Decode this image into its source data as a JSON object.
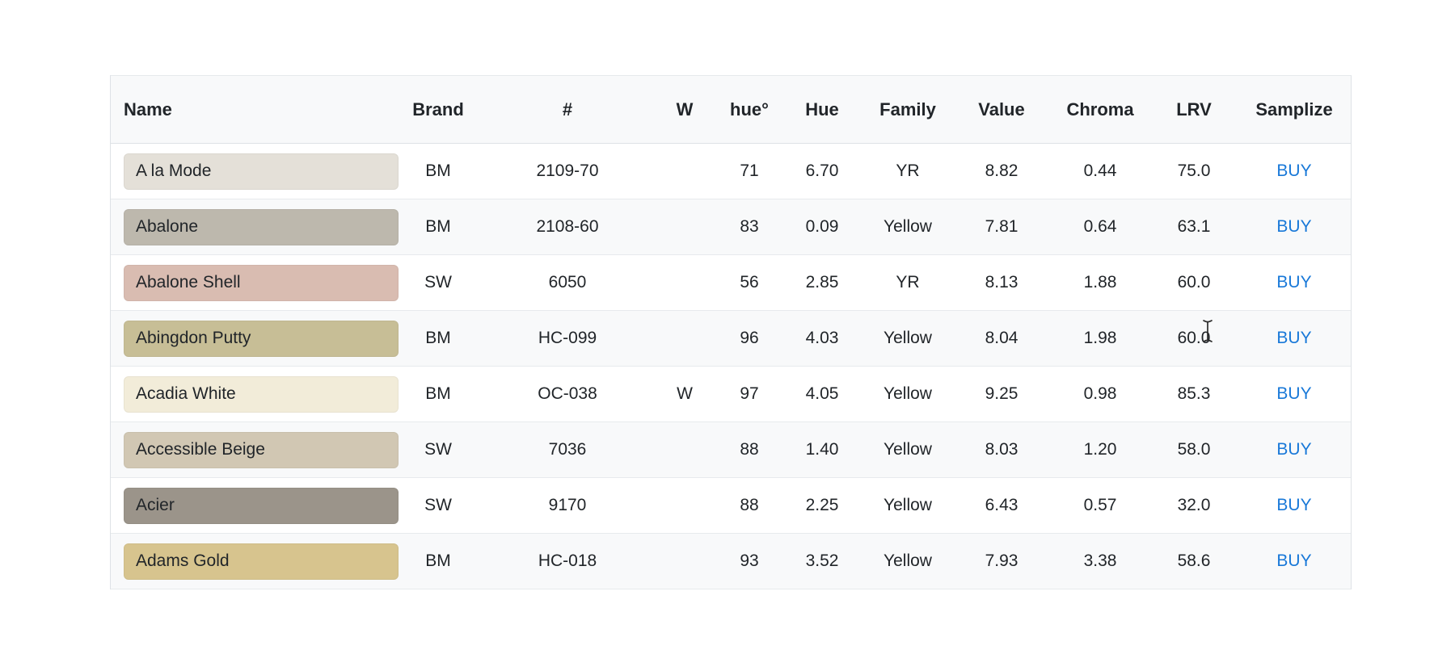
{
  "colors": {
    "page_bg": "#ffffff",
    "header_bg": "#f8f9fa",
    "stripe_bg": "#f8f9fa",
    "border": "#dee2e6",
    "text": "#212529",
    "link_blue": "#1878d8"
  },
  "table": {
    "columns": [
      {
        "key": "name",
        "label": "Name"
      },
      {
        "key": "brand",
        "label": "Brand"
      },
      {
        "key": "code",
        "label": "#"
      },
      {
        "key": "w",
        "label": "W"
      },
      {
        "key": "hue_deg",
        "label": "hue°"
      },
      {
        "key": "hue",
        "label": "Hue"
      },
      {
        "key": "family",
        "label": "Family"
      },
      {
        "key": "value",
        "label": "Value"
      },
      {
        "key": "chroma",
        "label": "Chroma"
      },
      {
        "key": "lrv",
        "label": "LRV"
      },
      {
        "key": "samplize",
        "label": "Samplize"
      }
    ],
    "rows": [
      {
        "name": "A la Mode",
        "swatch_color": "#e4e0d8",
        "brand": "BM",
        "code": "2109-70",
        "w": "",
        "hue_deg": "71",
        "hue": "6.70",
        "family": "YR",
        "value": "8.82",
        "chroma": "0.44",
        "lrv": "75.0",
        "samplize": "BUY"
      },
      {
        "name": "Abalone",
        "swatch_color": "#bdb8ad",
        "brand": "BM",
        "code": "2108-60",
        "w": "",
        "hue_deg": "83",
        "hue": "0.09",
        "family": "Yellow",
        "value": "7.81",
        "chroma": "0.64",
        "lrv": "63.1",
        "samplize": "BUY"
      },
      {
        "name": "Abalone Shell",
        "swatch_color": "#d9bcb1",
        "brand": "SW",
        "code": "6050",
        "w": "",
        "hue_deg": "56",
        "hue": "2.85",
        "family": "YR",
        "value": "8.13",
        "chroma": "1.88",
        "lrv": "60.0",
        "samplize": "BUY"
      },
      {
        "name": "Abingdon Putty",
        "swatch_color": "#c7be96",
        "brand": "BM",
        "code": "HC-099",
        "w": "",
        "hue_deg": "96",
        "hue": "4.03",
        "family": "Yellow",
        "value": "8.04",
        "chroma": "1.98",
        "lrv": "60.0",
        "samplize": "BUY"
      },
      {
        "name": "Acadia White",
        "swatch_color": "#f2ecd9",
        "brand": "BM",
        "code": "OC-038",
        "w": "W",
        "hue_deg": "97",
        "hue": "4.05",
        "family": "Yellow",
        "value": "9.25",
        "chroma": "0.98",
        "lrv": "85.3",
        "samplize": "BUY"
      },
      {
        "name": "Accessible Beige",
        "swatch_color": "#d1c7b3",
        "brand": "SW",
        "code": "7036",
        "w": "",
        "hue_deg": "88",
        "hue": "1.40",
        "family": "Yellow",
        "value": "8.03",
        "chroma": "1.20",
        "lrv": "58.0",
        "samplize": "BUY"
      },
      {
        "name": "Acier",
        "swatch_color": "#9b948a",
        "brand": "SW",
        "code": "9170",
        "w": "",
        "hue_deg": "88",
        "hue": "2.25",
        "family": "Yellow",
        "value": "6.43",
        "chroma": "0.57",
        "lrv": "32.0",
        "samplize": "BUY"
      },
      {
        "name": "Adams Gold",
        "swatch_color": "#d7c48e",
        "brand": "BM",
        "code": "HC-018",
        "w": "",
        "hue_deg": "93",
        "hue": "3.52",
        "family": "Yellow",
        "value": "7.93",
        "chroma": "3.38",
        "lrv": "58.6",
        "samplize": "BUY"
      }
    ]
  },
  "cursor": {
    "type": "text-ibeam"
  }
}
